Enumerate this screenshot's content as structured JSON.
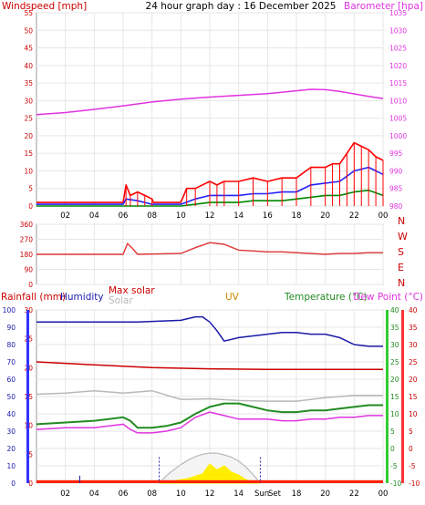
{
  "header": {
    "windspeed_label": "Windspeed [mph]",
    "title": "24 hour graph day : 16 December 2025",
    "barometer_label": "Barometer [hpa]"
  },
  "colors": {
    "wind_gust": "#ff0000",
    "wind_avg": "#2222ff",
    "wind_low": "#008800",
    "barometer": "#e033e0",
    "direction": "#dd3333",
    "humidity": "#1a1aaa",
    "rainfall": "#cc0000",
    "solar": "#b8b8b8",
    "max_solar": "#b8b8b8",
    "temperature": "#228b22",
    "dew_point": "#e033e0",
    "uv": "#cc8800",
    "solar_fill": "#ffee00",
    "rain_fill": "#ff2200"
  },
  "chart_data": [
    {
      "name": "wind-barometer",
      "type": "line",
      "x_ticks": [
        "02",
        "04",
        "06",
        "08",
        "10",
        "12",
        "14",
        "16",
        "18",
        "20",
        "22",
        "00"
      ],
      "left_axis": {
        "label": "Windspeed [mph]",
        "ylim": [
          0,
          55
        ],
        "ticks": [
          "0",
          "5",
          "10",
          "15",
          "20",
          "25",
          "30",
          "35",
          "40",
          "45",
          "50",
          "55"
        ]
      },
      "right_axis": {
        "label": "Barometer [hpa]",
        "ylim": [
          980,
          1035
        ],
        "ticks": [
          "980",
          "985",
          "990",
          "995",
          "1000",
          "1005",
          "1010",
          "1015",
          "1020",
          "1025",
          "1030",
          "1035"
        ]
      },
      "series": [
        {
          "key": "barometer",
          "axis": "right",
          "x": [
            0,
            2,
            4,
            6,
            8,
            10,
            12,
            14,
            16,
            18,
            19,
            20,
            21,
            22,
            23,
            24
          ],
          "values": [
            1006,
            1006.6,
            1007.5,
            1008.5,
            1009.6,
            1010.4,
            1011,
            1011.5,
            1012,
            1012.8,
            1013.2,
            1013.1,
            1012.6,
            1011.9,
            1011.2,
            1010.6
          ]
        },
        {
          "key": "wind_gust",
          "axis": "left",
          "x": [
            0,
            6,
            6.2,
            6.5,
            7,
            7.5,
            8,
            8.1,
            10,
            10.4,
            11,
            12,
            12.5,
            13,
            14,
            15,
            16,
            17,
            18,
            19,
            20,
            20.5,
            21,
            21.5,
            22,
            22.5,
            23,
            23.5,
            24
          ],
          "values": [
            1,
            1,
            6,
            3,
            4,
            3,
            2,
            1,
            1,
            5,
            5,
            7,
            6,
            7,
            7,
            8,
            7,
            8,
            8,
            11,
            11,
            12,
            12,
            15,
            18,
            17,
            16,
            14,
            13
          ]
        },
        {
          "key": "wind_avg",
          "axis": "left",
          "x": [
            0,
            6,
            6.2,
            7,
            8,
            10,
            11,
            12,
            13,
            14,
            15,
            16,
            17,
            18,
            19,
            20,
            21,
            22,
            23,
            24
          ],
          "values": [
            0.5,
            0.5,
            2,
            1.5,
            0.5,
            0.5,
            2,
            3,
            3,
            3,
            3.5,
            3.5,
            4,
            4,
            6,
            6.5,
            7,
            10,
            11,
            9
          ]
        },
        {
          "key": "wind_low",
          "axis": "left",
          "x": [
            0,
            10,
            11,
            12,
            13,
            14,
            15,
            16,
            17,
            18,
            19,
            20,
            21,
            22,
            23,
            24
          ],
          "values": [
            0,
            0,
            0.5,
            1,
            1,
            1,
            1.5,
            1.5,
            1.5,
            2,
            2.5,
            3,
            3,
            4,
            4.5,
            3
          ]
        }
      ]
    },
    {
      "name": "wind-direction",
      "type": "line",
      "x_ticks": [
        "02",
        "04",
        "06",
        "08",
        "10",
        "12",
        "14",
        "16",
        "18",
        "20",
        "22",
        "00"
      ],
      "y_axis": {
        "ylim": [
          0,
          360
        ],
        "ticks": [
          "0",
          "90",
          "180",
          "270",
          "360"
        ]
      },
      "compass_labels": [
        "N",
        "W",
        "S",
        "E",
        "N"
      ],
      "series": [
        {
          "key": "direction",
          "x": [
            0,
            6,
            6.3,
            6.6,
            7,
            10,
            11,
            12,
            13,
            14,
            15,
            16,
            17,
            18,
            19,
            20,
            21,
            22,
            23,
            24
          ],
          "values": [
            180,
            180,
            245,
            220,
            180,
            185,
            220,
            250,
            240,
            205,
            200,
            195,
            195,
            190,
            185,
            180,
            185,
            185,
            190,
            190
          ]
        }
      ]
    },
    {
      "name": "rain-humidity-solar-temperature",
      "type": "line",
      "x_ticks": [
        "02",
        "04",
        "06",
        "08",
        "10",
        "12",
        "14",
        "16",
        "18",
        "20",
        "22",
        "00"
      ],
      "sun_labels": {
        "rise": "Sun",
        "set": "Set"
      },
      "labels": {
        "rainfall": "Rainfall (mm)",
        "humidity": "Humidity",
        "max_solar": "Max solar",
        "solar": "Solar",
        "uv": "UV",
        "temperature": "Temperature (°C)",
        "dew_point": "Dew Point (°C)"
      },
      "humidity_axis": {
        "ylim": [
          0,
          100
        ],
        "ticks": [
          "0",
          "10",
          "20",
          "30",
          "40",
          "50",
          "60",
          "70",
          "80",
          "90",
          "100"
        ]
      },
      "rain_axis": {
        "ylim": [
          0,
          30
        ],
        "ticks": [
          "0",
          "5",
          "10",
          "15",
          "20",
          "25",
          "30"
        ]
      },
      "temp_axis": {
        "ylim": [
          -10,
          40
        ],
        "ticks": [
          "-10",
          "-5",
          "0",
          "5",
          "10",
          "15",
          "20",
          "25",
          "30",
          "35",
          "40"
        ]
      },
      "dew_axis": {
        "ylim": [
          -10,
          40
        ],
        "ticks": [
          "-10",
          "-5",
          "0",
          "5",
          "10",
          "15",
          "20",
          "25",
          "30",
          "35",
          "40"
        ]
      },
      "series": [
        {
          "key": "humidity",
          "axis": "humidity",
          "x": [
            0,
            6,
            7,
            10,
            11,
            11.5,
            12,
            12.5,
            13,
            14,
            15,
            16,
            17,
            18,
            19,
            20,
            21,
            22,
            23,
            24
          ],
          "values": [
            93,
            93,
            93,
            94,
            96,
            96,
            93,
            88,
            82,
            84,
            85,
            86,
            87,
            87,
            86,
            86,
            84,
            80,
            79,
            79
          ]
        },
        {
          "key": "rainfall",
          "axis": "rain",
          "x": [
            0,
            4,
            8,
            12,
            16,
            20,
            24
          ],
          "values": [
            21,
            20.5,
            20,
            19.8,
            19.7,
            19.7,
            19.7
          ]
        },
        {
          "key": "solar",
          "axis": "rain",
          "x": [
            0,
            2,
            4,
            6,
            8,
            10,
            12,
            14,
            16,
            18,
            20,
            22,
            24
          ],
          "values": [
            15.4,
            15.6,
            16,
            15.6,
            16,
            14.5,
            14.6,
            14.3,
            14.2,
            14.2,
            14.8,
            15.2,
            15.2
          ]
        },
        {
          "key": "temperature",
          "axis": "temp",
          "x": [
            0,
            2,
            4,
            5,
            6,
            6.5,
            7,
            8,
            9,
            10,
            11,
            12,
            13,
            14,
            15,
            16,
            17,
            18,
            19,
            20,
            21,
            22,
            23,
            24
          ],
          "values": [
            7,
            7.5,
            8,
            8.5,
            9,
            8,
            6,
            6,
            6.5,
            7.5,
            10,
            12,
            13,
            13,
            12,
            11,
            10.5,
            10.5,
            11,
            11,
            11.5,
            12,
            12.5,
            12.5
          ]
        },
        {
          "key": "dew_point",
          "axis": "dew",
          "x": [
            0,
            2,
            4,
            5,
            6,
            6.5,
            7,
            8,
            9,
            10,
            11,
            12,
            13,
            14,
            15,
            16,
            17,
            18,
            19,
            20,
            21,
            22,
            23,
            24
          ],
          "values": [
            5.5,
            6,
            6,
            6.5,
            7,
            5.5,
            4.5,
            4.5,
            5,
            6,
            9,
            10.5,
            9.5,
            8.5,
            8.5,
            8.5,
            8,
            8,
            8.5,
            8.5,
            9,
            9,
            9.5,
            9.5
          ]
        }
      ],
      "solar_radiation": {
        "x": [
          8.5,
          9.5,
          10.5,
          11.5,
          12,
          12.5,
          13,
          13.5,
          14,
          14.5,
          15.5
        ],
        "values": [
          0,
          0.4,
          0.8,
          1.6,
          3.3,
          2.3,
          3,
          1.9,
          1.4,
          0.6,
          0
        ]
      },
      "max_solar": {
        "x": [
          8.5,
          9,
          9.5,
          10,
          10.5,
          11,
          11.5,
          12,
          12.5,
          13,
          13.5,
          14,
          14.5,
          15,
          15.5
        ],
        "values": [
          0,
          1.3,
          2.3,
          3.2,
          4,
          4.6,
          5,
          5.2,
          5.2,
          4.9,
          4.5,
          3.8,
          2.8,
          1.5,
          0
        ]
      },
      "rain_bar_level": 0.5,
      "rain_bar_range": [
        1,
        16
      ]
    }
  ]
}
